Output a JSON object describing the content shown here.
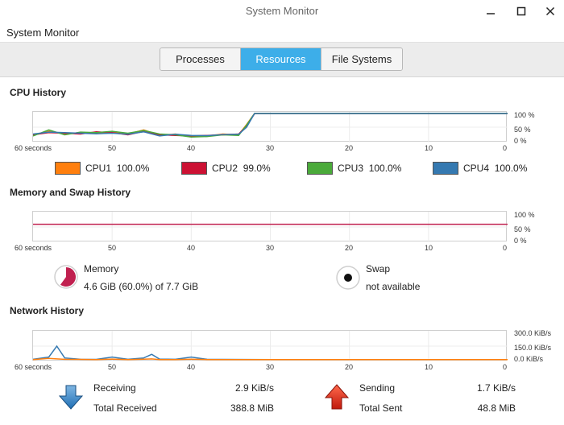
{
  "window": {
    "title": "System Monitor",
    "minimize_icon": "minimize-icon",
    "maximize_icon": "maximize-icon",
    "close_icon": "close-icon"
  },
  "app": {
    "title": "System Monitor"
  },
  "tabs": [
    {
      "label": "Processes",
      "active": false
    },
    {
      "label": "Resources",
      "active": true
    },
    {
      "label": "File Systems",
      "active": false
    }
  ],
  "cpu": {
    "section_title": "CPU History",
    "y_labels": [
      "100 %",
      "50 %",
      "0 %"
    ],
    "x_labels": [
      "60 seconds",
      "50",
      "40",
      "30",
      "20",
      "10",
      "0"
    ],
    "cores": [
      {
        "name": "CPU1",
        "value": "100.0%",
        "color": "#ff7f0e"
      },
      {
        "name": "CPU2",
        "value": "99.0%",
        "color": "#cc1133"
      },
      {
        "name": "CPU3",
        "value": "100.0%",
        "color": "#4aaa3a"
      },
      {
        "name": "CPU4",
        "value": "100.0%",
        "color": "#3579b1"
      }
    ]
  },
  "memory": {
    "section_title": "Memory and Swap History",
    "y_labels": [
      "100 %",
      "50 %",
      "0 %"
    ],
    "x_labels": [
      "60 seconds",
      "50",
      "40",
      "30",
      "20",
      "10",
      "0"
    ],
    "memory_label": "Memory",
    "memory_value": "4.6 GiB (60.0%) of 7.7 GiB",
    "memory_fraction": 0.6,
    "memory_color": "#c0204f",
    "swap_label": "Swap",
    "swap_value": "not available"
  },
  "network": {
    "section_title": "Network History",
    "y_labels": [
      "300.0 KiB/s",
      "150.0 KiB/s",
      "0.0 KiB/s"
    ],
    "x_labels": [
      "60 seconds",
      "50",
      "40",
      "30",
      "20",
      "10",
      "0"
    ],
    "receiving_label": "Receiving",
    "receiving_value": "2.9 KiB/s",
    "total_received_label": "Total Received",
    "total_received_value": "388.8 MiB",
    "sending_label": "Sending",
    "sending_value": "1.7 KiB/s",
    "total_sent_label": "Total Sent",
    "total_sent_value": "48.8 MiB"
  },
  "chart_data": [
    {
      "type": "line",
      "title": "CPU History",
      "x": [
        60,
        58,
        56,
        54,
        52,
        50,
        48,
        46,
        44,
        42,
        40,
        38,
        36,
        34,
        33,
        32,
        30,
        20,
        10,
        0
      ],
      "ylim": [
        0,
        100
      ],
      "series": [
        {
          "name": "CPU1",
          "values": [
            20,
            35,
            25,
            30,
            28,
            32,
            25,
            40,
            20,
            25,
            15,
            18,
            25,
            22,
            60,
            100,
            100,
            100,
            100,
            100
          ]
        },
        {
          "name": "CPU2",
          "values": [
            22,
            30,
            28,
            25,
            33,
            30,
            22,
            35,
            22,
            20,
            18,
            20,
            22,
            25,
            55,
            99,
            99,
            99,
            99,
            99
          ]
        },
        {
          "name": "CPU3",
          "values": [
            18,
            40,
            22,
            32,
            30,
            35,
            28,
            38,
            25,
            22,
            14,
            16,
            22,
            20,
            58,
            100,
            100,
            100,
            100,
            100
          ]
        },
        {
          "name": "CPU4",
          "values": [
            25,
            32,
            30,
            28,
            26,
            28,
            24,
            33,
            18,
            24,
            20,
            19,
            23,
            24,
            50,
            100,
            100,
            100,
            100,
            100
          ]
        }
      ]
    },
    {
      "type": "line",
      "title": "Memory and Swap History",
      "x": [
        60,
        50,
        40,
        30,
        20,
        10,
        0
      ],
      "ylim": [
        0,
        100
      ],
      "series": [
        {
          "name": "Memory",
          "values": [
            60,
            60,
            60,
            60,
            60,
            60,
            60
          ]
        }
      ]
    },
    {
      "type": "line",
      "title": "Network History",
      "x": [
        60,
        58,
        57,
        56,
        54,
        52,
        50,
        48,
        46,
        45,
        44,
        42,
        40,
        38,
        36,
        30,
        20,
        10,
        0
      ],
      "ylim": [
        0,
        300
      ],
      "series": [
        {
          "name": "Receiving",
          "values": [
            5,
            30,
            150,
            20,
            5,
            4,
            30,
            5,
            20,
            60,
            8,
            5,
            30,
            5,
            4,
            3,
            3,
            3,
            3
          ]
        },
        {
          "name": "Sending",
          "values": [
            3,
            15,
            10,
            5,
            4,
            3,
            8,
            3,
            6,
            10,
            3,
            3,
            6,
            3,
            3,
            2,
            2,
            2,
            2
          ]
        }
      ]
    }
  ]
}
